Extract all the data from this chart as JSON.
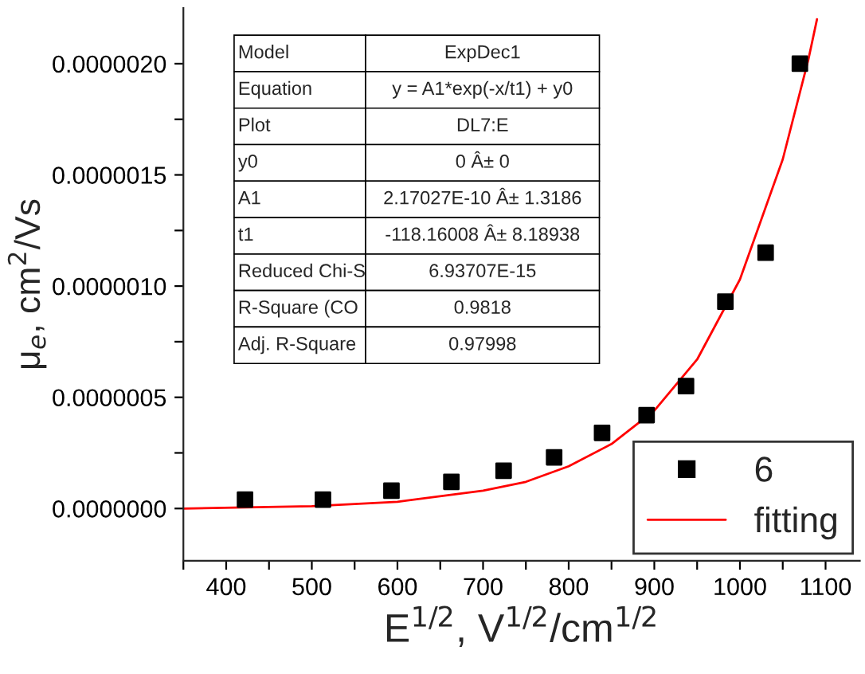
{
  "chart_data": {
    "type": "scatter",
    "xlabel": "E$^{1/2}$, V$^{1/2}$/cm$^{1/2}$",
    "ylabel": "μ$_{e}$, cm$^{2}$/Vs",
    "series": [
      {
        "name": "6",
        "color": "#000000",
        "marker": "square",
        "x": [
          422,
          513,
          593,
          663,
          724,
          783,
          839,
          891,
          937,
          983,
          1030,
          1070
        ],
        "values": [
          4e-08,
          4e-08,
          8e-08,
          1.2e-07,
          1.7e-07,
          2.3e-07,
          3.4e-07,
          4.2e-07,
          5.5e-07,
          9.3e-07,
          1.15e-06,
          2e-06
        ]
      },
      {
        "name": "fitting",
        "type": "line",
        "color": "#ff0000",
        "marker": "none",
        "line_style": "solid",
        "x": [
          350,
          500,
          600,
          700,
          750,
          800,
          850,
          900,
          950,
          1000,
          1050,
          1080,
          1090
        ],
        "values": [
          0,
          1e-08,
          3e-08,
          8e-08,
          1.2e-07,
          1.9e-07,
          2.9e-07,
          4.4e-07,
          6.7e-07,
          1.03e-06,
          1.57e-06,
          2.02e-06,
          2.2e-06
        ]
      }
    ],
    "xlim": [
      350,
      1140
    ],
    "ylim": [
      -2.35e-07,
      2.25e-06
    ],
    "xticks": [
      {
        "value": 400,
        "label": "400"
      },
      {
        "value": 500,
        "label": "500"
      },
      {
        "value": 600,
        "label": "600"
      },
      {
        "value": 700,
        "label": "700"
      },
      {
        "value": 800,
        "label": "800"
      },
      {
        "value": 900,
        "label": "900"
      },
      {
        "value": 1000,
        "label": "1000"
      },
      {
        "value": 1100,
        "label": "1100"
      },
      {
        "value": 350,
        "label": null
      },
      {
        "value": 450,
        "label": null
      },
      {
        "value": 550,
        "label": null
      },
      {
        "value": 650,
        "label": null
      },
      {
        "value": 750,
        "label": null
      },
      {
        "value": 850,
        "label": null
      },
      {
        "value": 950,
        "label": null
      },
      {
        "value": 1050,
        "label": null
      }
    ],
    "yticks": [
      {
        "value": 0,
        "label": "0.0000000"
      },
      {
        "value": 5e-07,
        "label": "0.0000005"
      },
      {
        "value": 1e-06,
        "label": "0.0000010"
      },
      {
        "value": 1.5e-06,
        "label": "0.0000015"
      },
      {
        "value": 2e-06,
        "label": "0.0000020"
      },
      {
        "value": 2.5e-07,
        "label": null
      },
      {
        "value": 7.5e-07,
        "label": null
      },
      {
        "value": 1.25e-06,
        "label": null
      },
      {
        "value": 1.75e-06,
        "label": null
      }
    ],
    "annotations": [
      "Model",
      "ExpDec1",
      "Equation",
      "y = A1*exp(-x/t1) + y0",
      "Plot",
      "DL7:E",
      "y0",
      "0 Â± 0",
      "A1",
      "2.17027E-10 Â± 1.3186",
      "t1",
      "-118.16008 Â± 8.18938",
      "Reduced Chi-S",
      "6.93707E-15",
      "R-Square (CO",
      "0.9818",
      "Adj. R-Square",
      "0.97998"
    ],
    "legend": "bottom right",
    "grid": false
  }
}
